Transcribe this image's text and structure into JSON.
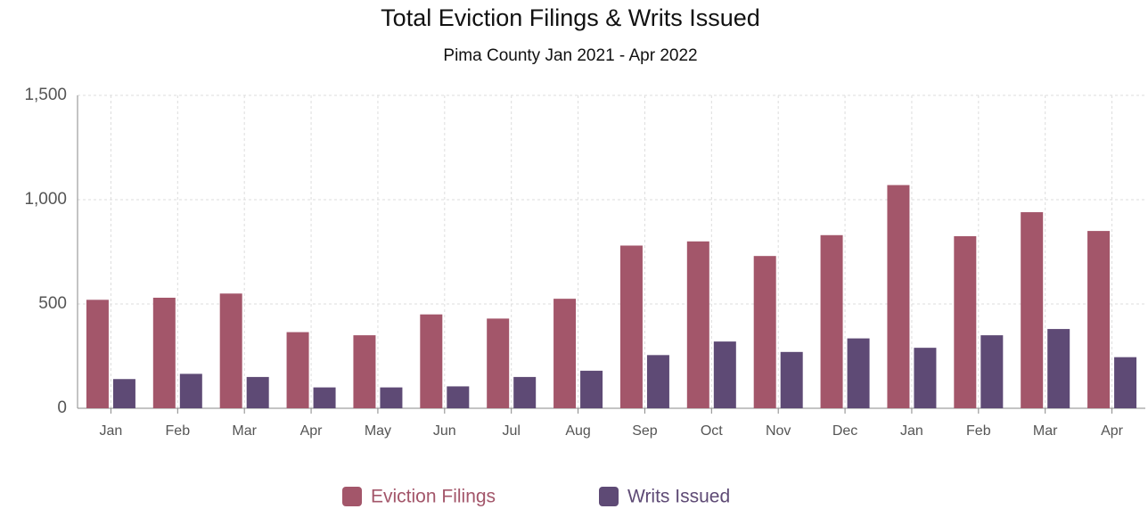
{
  "chart_data": {
    "type": "bar",
    "title": "Total Eviction Filings & Writs Issued",
    "subtitle": "Pima County Jan 2021 - Apr 2022",
    "categories": [
      "Jan",
      "Feb",
      "Mar",
      "Apr",
      "May",
      "Jun",
      "Jul",
      "Aug",
      "Sep",
      "Oct",
      "Nov",
      "Dec",
      "Jan",
      "Feb",
      "Mar",
      "Apr"
    ],
    "series": [
      {
        "name": "Eviction Filings",
        "color": "#a3566a",
        "values": [
          520,
          530,
          550,
          365,
          350,
          450,
          430,
          525,
          780,
          800,
          730,
          830,
          1070,
          825,
          940,
          850
        ]
      },
      {
        "name": "Writs Issued",
        "color": "#5e4a75",
        "values": [
          140,
          165,
          150,
          100,
          100,
          105,
          150,
          180,
          255,
          320,
          270,
          335,
          290,
          350,
          380,
          245
        ]
      }
    ],
    "ylim": [
      0,
      1500
    ],
    "yticks": [
      0,
      500,
      {
        "value": 1000,
        "label": "1,000"
      },
      {
        "value": 1500,
        "label": "1,500"
      }
    ],
    "grid": true,
    "legend": "bottom"
  }
}
